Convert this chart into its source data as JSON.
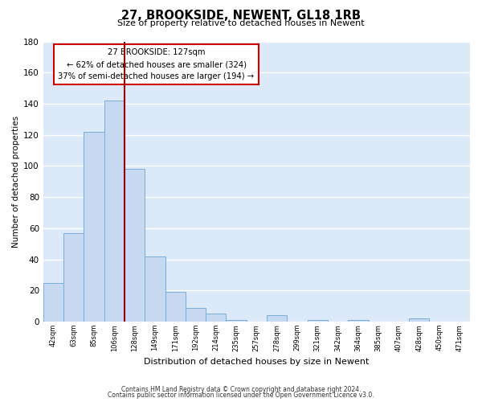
{
  "title": "27, BROOKSIDE, NEWENT, GL18 1RB",
  "subtitle": "Size of property relative to detached houses in Newent",
  "xlabel": "Distribution of detached houses by size in Newent",
  "ylabel": "Number of detached properties",
  "bar_labels": [
    "42sqm",
    "63sqm",
    "85sqm",
    "106sqm",
    "128sqm",
    "149sqm",
    "171sqm",
    "192sqm",
    "214sqm",
    "235sqm",
    "257sqm",
    "278sqm",
    "299sqm",
    "321sqm",
    "342sqm",
    "364sqm",
    "385sqm",
    "407sqm",
    "428sqm",
    "450sqm",
    "471sqm"
  ],
  "bar_values": [
    25,
    57,
    122,
    142,
    98,
    42,
    19,
    9,
    5,
    1,
    0,
    4,
    0,
    1,
    0,
    1,
    0,
    0,
    2,
    0,
    0
  ],
  "bar_color": "#c6d9f1",
  "bar_edge_color": "#7aaddb",
  "vline_index": 4,
  "vline_color": "#990000",
  "annotation_title": "27 BROOKSIDE: 127sqm",
  "annotation_line1": "← 62% of detached houses are smaller (324)",
  "annotation_line2": "37% of semi-detached houses are larger (194) →",
  "ylim": [
    0,
    180
  ],
  "yticks": [
    0,
    20,
    40,
    60,
    80,
    100,
    120,
    140,
    160,
    180
  ],
  "footer_line1": "Contains HM Land Registry data © Crown copyright and database right 2024.",
  "footer_line2": "Contains public sector information licensed under the Open Government Licence v3.0.",
  "background_color": "#ffffff",
  "plot_bg_color": "#dce9f8"
}
